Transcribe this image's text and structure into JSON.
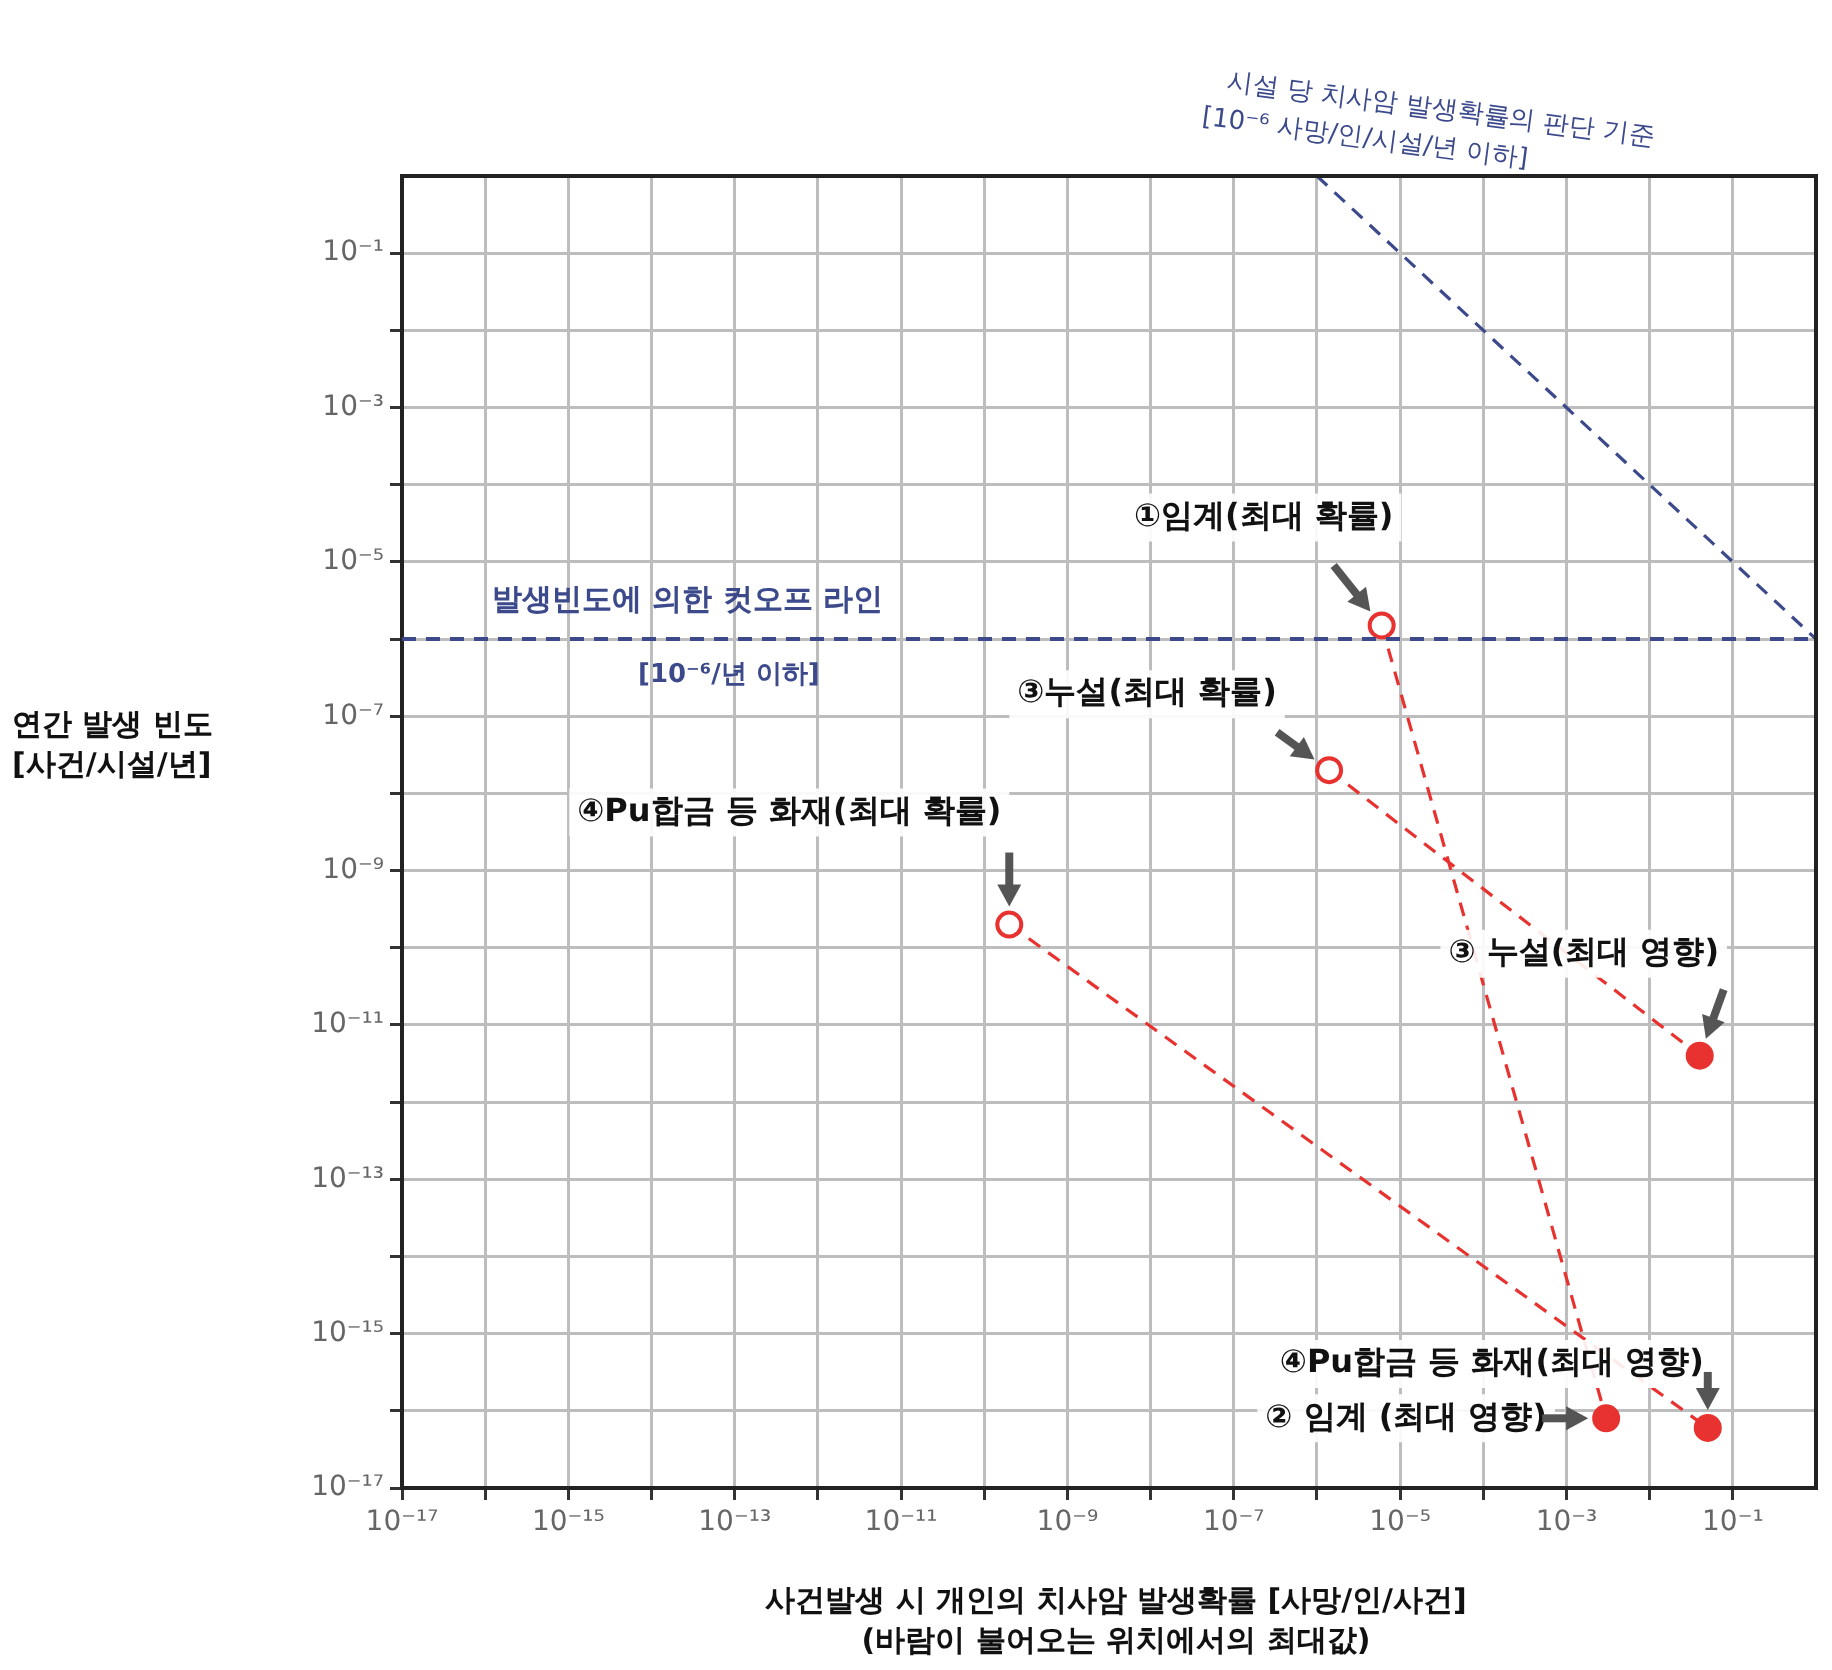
{
  "chart_data": {
    "type": "line",
    "xlabel": "사건발생 시 개인의 치사암 발생확률 [사망/인/사건]\n(바람이 불어오는 위치에서의 최대값)",
    "ylabel": "연간 발생 빈도\n[사건/시설/년]",
    "log": "xy",
    "grid": true,
    "legend": false,
    "marker": "circle",
    "line_style": "dashed",
    "xlim": [
      1e-17,
      1
    ],
    "ylim": [
      1e-17,
      1
    ],
    "xticks": [
      {
        "value": 1e-17,
        "label": "10⁻¹⁷"
      },
      {
        "value": 1e-16,
        "label": null
      },
      {
        "value": 1e-15,
        "label": "10⁻¹⁵"
      },
      {
        "value": 1e-14,
        "label": null
      },
      {
        "value": 1e-13,
        "label": "10⁻¹³"
      },
      {
        "value": 1e-12,
        "label": null
      },
      {
        "value": 1e-11,
        "label": "10⁻¹¹"
      },
      {
        "value": 1e-10,
        "label": null
      },
      {
        "value": 1e-09,
        "label": "10⁻⁹"
      },
      {
        "value": 1e-08,
        "label": null
      },
      {
        "value": 1e-07,
        "label": "10⁻⁷"
      },
      {
        "value": 1e-06,
        "label": null
      },
      {
        "value": 1e-05,
        "label": "10⁻⁵"
      },
      {
        "value": 0.0001,
        "label": null
      },
      {
        "value": 0.001,
        "label": "10⁻³"
      },
      {
        "value": 0.01,
        "label": null
      },
      {
        "value": 0.1,
        "label": "10⁻¹"
      }
    ],
    "yticks": [
      {
        "value": 1e-17,
        "label": "10⁻¹⁷"
      },
      {
        "value": 1e-16,
        "label": null
      },
      {
        "value": 1e-15,
        "label": "10⁻¹⁵"
      },
      {
        "value": 1e-14,
        "label": null
      },
      {
        "value": 1e-13,
        "label": "10⁻¹³"
      },
      {
        "value": 1e-12,
        "label": null
      },
      {
        "value": 1e-11,
        "label": "10⁻¹¹"
      },
      {
        "value": 1e-10,
        "label": null
      },
      {
        "value": 1e-09,
        "label": "10⁻⁹"
      },
      {
        "value": 1e-08,
        "label": null
      },
      {
        "value": 1e-07,
        "label": "10⁻⁷"
      },
      {
        "value": 1e-06,
        "label": null
      },
      {
        "value": 1e-05,
        "label": "10⁻⁵"
      },
      {
        "value": 0.0001,
        "label": null
      },
      {
        "value": 0.001,
        "label": "10⁻³"
      },
      {
        "value": 0.01,
        "label": null
      },
      {
        "value": 0.1,
        "label": "10⁻¹"
      }
    ],
    "series": [
      {
        "color": "#e8322f",
        "x": [
          6e-06,
          0.003
        ],
        "values": [
          1.5e-06,
          8e-17
        ]
      },
      {
        "color": "#e8322f",
        "x": [
          1.4e-06,
          0.04
        ],
        "values": [
          2e-08,
          4e-12
        ]
      },
      {
        "color": "#e8322f",
        "x": [
          2e-10,
          0.05
        ],
        "values": [
          2e-10,
          6e-17
        ]
      },
      {
        "name": "시설 당 치사암 발생확률의 판단 기준\n[10⁻⁶ 사망/인/시설/년 이하]",
        "color": "#3c4a8c",
        "marker": "none",
        "x": [
          1e-06,
          1
        ],
        "values": [
          1,
          1e-06
        ]
      }
    ],
    "ref_lines": [
      {
        "axis": "y",
        "value": 1e-06,
        "label": "발생빈도에 의한 컷오프 라인\n[10⁻⁶/년 이하]",
        "color": "#3c4a8c",
        "line_style": "dashed"
      }
    ],
    "annotations": [
      {
        "text": "①임계(최대 확률)",
        "x": 6e-06,
        "y": 1.5e-06
      },
      {
        "text": "③누설(최대 확률)",
        "x": 1.4e-06,
        "y": 2e-08
      },
      {
        "text": "④Pu합금 등 화재(최대 확률)",
        "x": 2e-10,
        "y": 2e-10
      },
      {
        "text": "③ 누설(최대 영향)",
        "x": 0.04,
        "y": 4e-12
      },
      {
        "text": "④Pu합금 등 화재(최대 영향)",
        "x": 0.05,
        "y": 6e-17
      },
      {
        "text": "② 임계 (최대 영향)",
        "x": 0.003,
        "y": 8e-17
      }
    ]
  }
}
